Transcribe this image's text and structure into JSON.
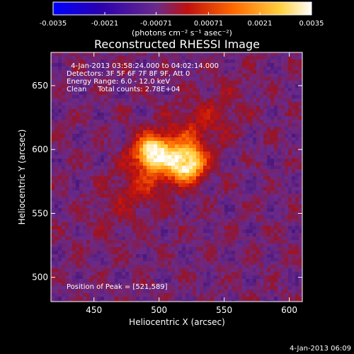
{
  "chart_data": {
    "type": "heatmap",
    "title": "Reconstructed RHESSI Image",
    "xlabel": "Heliocentric X (arcsec)",
    "ylabel": "Heliocentric Y (arcsec)",
    "xlim": [
      417,
      610
    ],
    "ylim": [
      481,
      676
    ],
    "x_ticks": [
      450,
      500,
      550,
      600
    ],
    "y_ticks": [
      500,
      550,
      600,
      650
    ],
    "colorbar": {
      "min": -0.0035,
      "max": 0.0035,
      "tick_values": [
        -0.0035,
        -0.0021,
        -0.00071,
        0.00071,
        0.0021,
        0.0035
      ],
      "tick_labels": [
        "-0.0035",
        "-0.0021",
        "-0.00071",
        "0.00071",
        "0.0021",
        "0.0035"
      ],
      "units_label": "(photons cm⁻² s⁻¹ asec⁻²)",
      "colormap": "blue-purple-red-yellow-white"
    },
    "annotations": [
      "4-Jan-2013 03:58:24.000 to 04:02:14.000",
      "Detectors: 3F 5F 6F 7F 8F 9F, Att 0",
      "Energy Range: 6.0 - 12.0 keV",
      "Clean     Total counts: 2.78E+04"
    ],
    "peak_label": "Position of Peak = [521,589]",
    "sources": [
      {
        "x": 495,
        "y": 598,
        "value": 0.0033
      },
      {
        "x": 521,
        "y": 589,
        "value": 0.0035
      }
    ]
  },
  "footer": {
    "timestamp": "4-Jan-2013 06:09"
  },
  "colors": {
    "background": "#000000",
    "foreground": "#ffffff",
    "colormap_stops": [
      "#0000ff",
      "#2a00a8",
      "#5a2a9a",
      "#ff2000",
      "#ffb000",
      "#ffffff"
    ]
  }
}
